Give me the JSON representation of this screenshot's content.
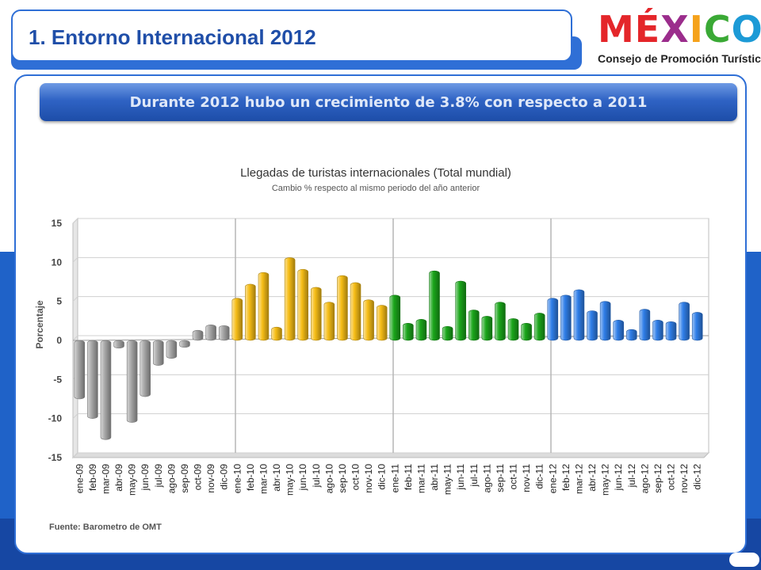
{
  "header": {
    "title": "1.   Entorno Internacional 2012",
    "logo_word": "MÉXICO",
    "logo_letters": [
      {
        "ch": "M",
        "color": "#e4262a"
      },
      {
        "ch": "É",
        "color": "#e4262a"
      },
      {
        "ch": "X",
        "color": "#9b2d8c"
      },
      {
        "ch": "I",
        "color": "#f5a21b"
      },
      {
        "ch": "C",
        "color": "#3aa935"
      },
      {
        "ch": "O",
        "color": "#1c9ad6"
      }
    ],
    "logo_subtitle": "Consejo de Promoción Turística"
  },
  "banner": {
    "text": "Durante 2012 hubo un crecimiento de 3.8% con respecto a 2011"
  },
  "chart_data": {
    "type": "bar",
    "title": "Llegadas de turistas internacionales (Total mundial)",
    "subtitle": "Cambio % respecto al mismo periodo del año anterior",
    "ylabel": "Porcentaje",
    "xlabel": "",
    "ylim": [
      -15,
      15
    ],
    "yticks": [
      15,
      10,
      5,
      0,
      -5,
      -10,
      -15
    ],
    "grid": true,
    "categories": [
      "ene-09",
      "feb-09",
      "mar-09",
      "abr-09",
      "may-09",
      "jun-09",
      "jul-09",
      "ago-09",
      "sep-09",
      "oct-09",
      "nov-09",
      "dic-09",
      "ene-10",
      "feb-10",
      "mar-10",
      "abr-10",
      "may-10",
      "jun-10",
      "jul-10",
      "ago-10",
      "sep-10",
      "oct-10",
      "nov-10",
      "dic-10",
      "ene-11",
      "feb-11",
      "mar-11",
      "abr-11",
      "may-11",
      "jun-11",
      "jul-11",
      "ago-11",
      "sep-11",
      "oct-11",
      "nov-11",
      "dic-11",
      "ene-12",
      "feb-12",
      "mar-12",
      "abr-12",
      "may-12",
      "jun-12",
      "jul-12",
      "ago-12",
      "sep-12",
      "oct-12",
      "nov-12",
      "dic-12"
    ],
    "values": [
      -7.5,
      -10,
      -12.7,
      -1,
      -10.5,
      -7.2,
      -3.2,
      -2.3,
      -0.9,
      1.3,
      2,
      1.9,
      5.4,
      7.2,
      8.7,
      1.7,
      10.6,
      9.1,
      6.8,
      4.9,
      8.3,
      7.4,
      5.2,
      4.5,
      5.8,
      2.2,
      2.7,
      8.9,
      1.8,
      7.6,
      3.9,
      3.1,
      4.9,
      2.8,
      2.2,
      3.5,
      5.4,
      5.8,
      6.5,
      3.8,
      5,
      2.6,
      1.4,
      4,
      2.6,
      2.4,
      4.9,
      3.6
    ],
    "group_colors": [
      "#a7a7a7",
      "#f6bd16",
      "#1aa51a",
      "#2f7ee8"
    ]
  },
  "source": "Fuente: Barometro de OMT"
}
